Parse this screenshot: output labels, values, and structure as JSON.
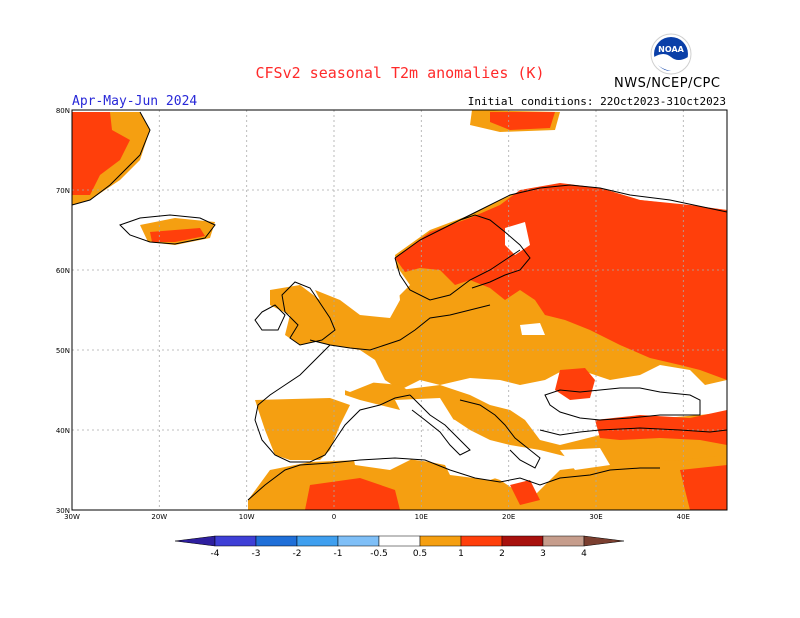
{
  "title": "CFSv2 seasonal T2m anomalies (K)",
  "agency": "NWS/NCEP/CPC",
  "logo_text": "NOAA",
  "period": "Apr-May-Jun 2024",
  "initial_conditions": "Initial conditions: 22Oct2023-31Oct2023",
  "map": {
    "lon_range": [
      -30,
      45
    ],
    "lat_range": [
      30,
      80
    ],
    "lon_labels": [
      "30W",
      "20W",
      "10W",
      "0",
      "10E",
      "20E",
      "30E",
      "40E"
    ],
    "lat_labels": [
      "80N",
      "70N",
      "60N",
      "50N",
      "40N",
      "30N"
    ],
    "grid": "dotted",
    "land_color": "#000000",
    "grid_color": "#aaaaaa"
  },
  "colorbar": {
    "levels": [
      "-4",
      "-3",
      "-2",
      "-1",
      "-0.5",
      "0.5",
      "1",
      "2",
      "3",
      "4"
    ],
    "colors": [
      "#2e1f9f",
      "#3e3fd6",
      "#1f6fd8",
      "#3f9fef",
      "#7fbff7",
      "#ffffff",
      "#f59f11",
      "#ff3f0b",
      "#a8110d",
      "#c69d8c",
      "#7b3f30"
    ]
  },
  "anomaly_regions": [
    {
      "class": "0.5-1",
      "color": "#f59f11",
      "description": "widespread warm anomaly over continental Europe, Mediterranean, N Africa"
    },
    {
      "class": "1-2",
      "color": "#ff3f0b",
      "description": "strong warm anomaly over Scandinavia, NW Russia, Greenland, Romania, Anatolia"
    }
  ]
}
